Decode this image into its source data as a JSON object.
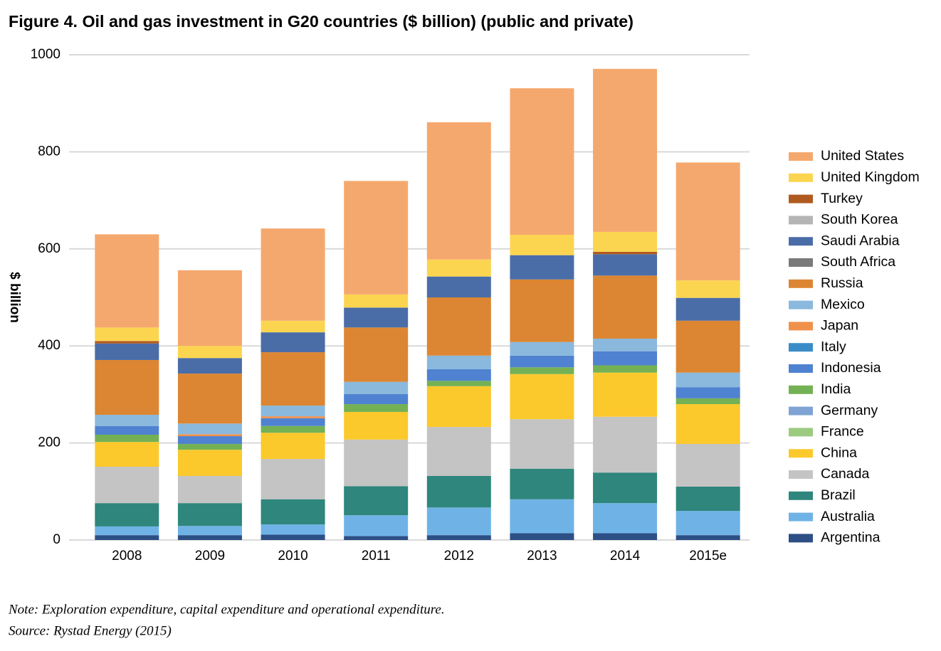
{
  "chart_data": {
    "type": "stacked-bar",
    "title": "Figure 4. Oil and gas investment in G20 countries ($ billion) (public and private)",
    "y_label": "$ billion",
    "note": "Note: Exploration expenditure, capital expenditure and operational expenditure.",
    "source": "Source: Rystad Energy (2015)",
    "categories": [
      "2008",
      "2009",
      "2010",
      "2011",
      "2012",
      "2013",
      "2014",
      "2015e"
    ],
    "ylim": [
      0,
      1000
    ],
    "yticks": [
      0,
      200,
      400,
      600,
      800,
      1000
    ],
    "grid": true,
    "series": [
      {
        "name": "Argentina",
        "color": "#2c4f85",
        "values": [
          10,
          10,
          11,
          8,
          10,
          14,
          14,
          10
        ]
      },
      {
        "name": "Australia",
        "color": "#6fb3e6",
        "values": [
          18,
          19,
          21,
          43,
          57,
          70,
          62,
          50
        ]
      },
      {
        "name": "Brazil",
        "color": "#2e867c",
        "values": [
          48,
          47,
          52,
          60,
          65,
          63,
          63,
          50
        ]
      },
      {
        "name": "Canada",
        "color": "#c4c4c4",
        "values": [
          75,
          56,
          83,
          96,
          101,
          102,
          115,
          88
        ]
      },
      {
        "name": "China",
        "color": "#fbc92c",
        "values": [
          51,
          54,
          54,
          57,
          84,
          93,
          91,
          82
        ]
      },
      {
        "name": "France",
        "color": "#9ccb80",
        "values": [
          0,
          0,
          0,
          0,
          0,
          0,
          0,
          0
        ]
      },
      {
        "name": "Germany",
        "color": "#7ea3d4",
        "values": [
          0,
          0,
          0,
          0,
          0,
          0,
          0,
          0
        ]
      },
      {
        "name": "India",
        "color": "#74b154",
        "values": [
          15,
          12,
          14,
          16,
          11,
          14,
          15,
          12
        ]
      },
      {
        "name": "Indonesia",
        "color": "#4f82d0",
        "values": [
          18,
          16,
          16,
          21,
          24,
          24,
          29,
          23
        ]
      },
      {
        "name": "Italy",
        "color": "#3a8cc8",
        "values": [
          0,
          0,
          0,
          0,
          0,
          0,
          0,
          0
        ]
      },
      {
        "name": "Japan",
        "color": "#f0914a",
        "values": [
          0,
          4,
          4,
          0,
          0,
          0,
          0,
          0
        ]
      },
      {
        "name": "Mexico",
        "color": "#8ab9dd",
        "values": [
          23,
          22,
          22,
          25,
          28,
          28,
          26,
          30
        ]
      },
      {
        "name": "Russia",
        "color": "#dc8633",
        "values": [
          113,
          103,
          110,
          112,
          120,
          129,
          130,
          107
        ]
      },
      {
        "name": "South Africa",
        "color": "#7a7a7a",
        "values": [
          0,
          0,
          0,
          0,
          0,
          0,
          0,
          0
        ]
      },
      {
        "name": "Saudi Arabia",
        "color": "#4a6da8",
        "values": [
          34,
          32,
          41,
          41,
          43,
          50,
          44,
          47
        ]
      },
      {
        "name": "South Korea",
        "color": "#b5b5b5",
        "values": [
          0,
          0,
          0,
          0,
          0,
          0,
          0,
          0
        ]
      },
      {
        "name": "Turkey",
        "color": "#b05a1f",
        "values": [
          5,
          0,
          0,
          0,
          0,
          0,
          5,
          0
        ]
      },
      {
        "name": "United Kingdom",
        "color": "#fcd550",
        "values": [
          28,
          25,
          24,
          27,
          35,
          42,
          41,
          36
        ]
      },
      {
        "name": "United States",
        "color": "#f5a86e",
        "values": [
          192,
          156,
          190,
          234,
          283,
          302,
          336,
          243
        ]
      }
    ]
  }
}
